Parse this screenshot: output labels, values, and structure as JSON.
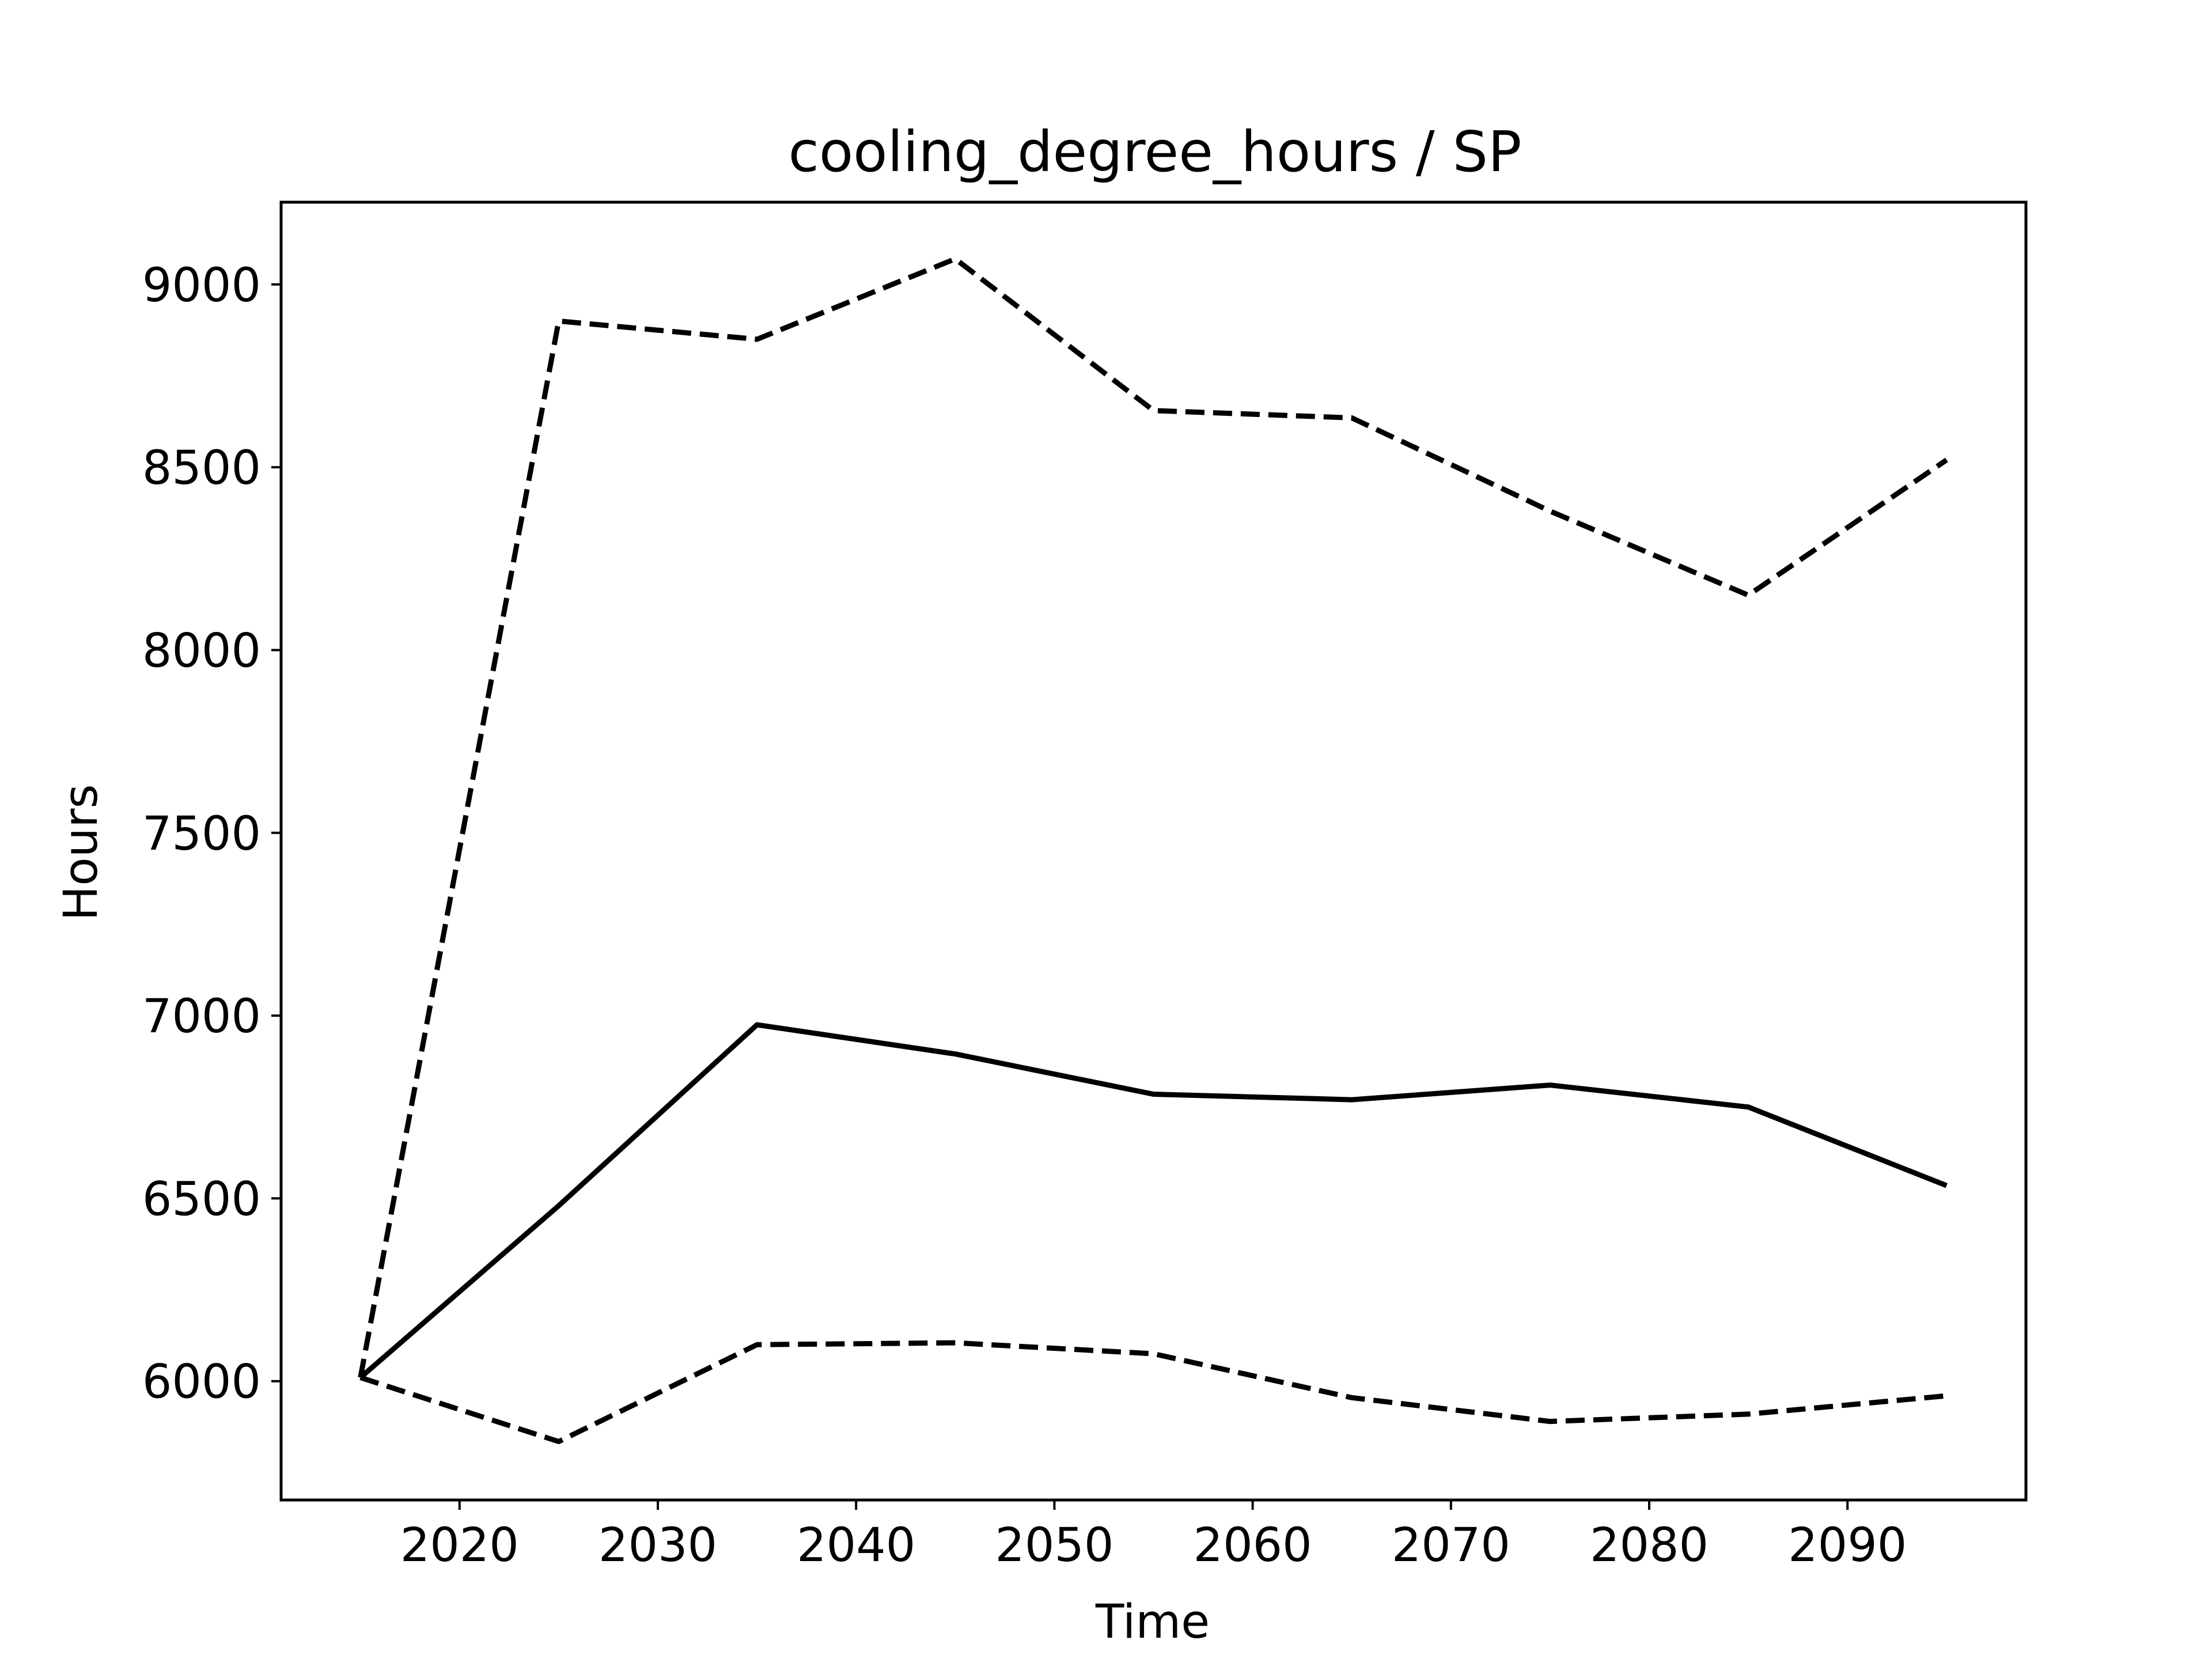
{
  "chart_data": {
    "type": "line",
    "title": "cooling_degree_hours / SP",
    "xlabel": "Time",
    "ylabel": "Hours",
    "xlim": [
      2011,
      2099
    ],
    "ylim": [
      5675,
      9225
    ],
    "xticks": [
      2020,
      2030,
      2040,
      2050,
      2060,
      2070,
      2080,
      2090
    ],
    "yticks": [
      6000,
      6500,
      7000,
      7500,
      8000,
      8500,
      9000
    ],
    "grid": false,
    "x": [
      2015,
      2025,
      2035,
      2045,
      2055,
      2065,
      2075,
      2085,
      2095
    ],
    "series": [
      {
        "values": [
          6010,
          8900,
          8850,
          9070,
          8655,
          8635,
          8380,
          8150,
          8520
        ],
        "color": "#000000",
        "style": "dashed"
      },
      {
        "values": [
          6010,
          6480,
          6975,
          6895,
          6785,
          6770,
          6810,
          6750,
          6535
        ],
        "color": "#000000",
        "style": "solid"
      },
      {
        "values": [
          6010,
          5835,
          6100,
          6105,
          6075,
          5955,
          5890,
          5910,
          5960
        ],
        "color": "#000000",
        "style": "dashed"
      }
    ]
  }
}
